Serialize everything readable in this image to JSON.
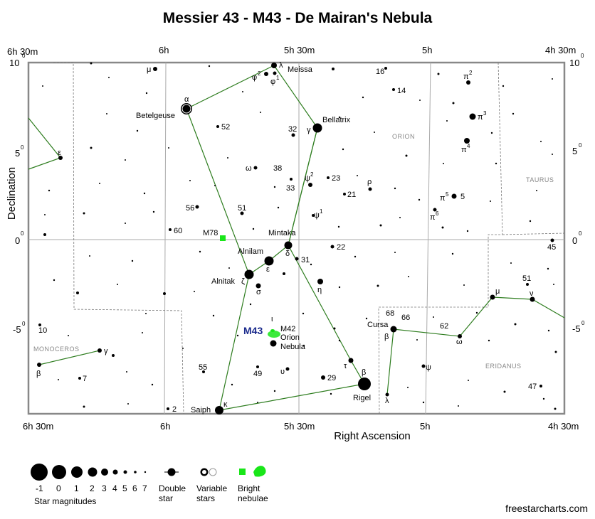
{
  "title": "Messier 43 - M43 - De Mairan's Nebula",
  "chart_data": {
    "type": "star-chart",
    "axes": {
      "xlabel": "Right Ascension",
      "ylabel": "Declination",
      "ra_ticks": [
        "6h 30m",
        "6h",
        "5h 30m",
        "5h",
        "4h 30m"
      ],
      "dec_ticks_left": [
        "10",
        "5",
        "0",
        "-5"
      ],
      "dec_ticks_right": [
        "10",
        "5",
        "0",
        "-5"
      ],
      "dec_minutes": "0",
      "dec_range": [
        -9.7,
        10.0
      ]
    },
    "constellations": [
      "Orion",
      "Taurus",
      "Monoceros",
      "Eridanus"
    ],
    "named_stars": [
      {
        "label": "Betelgeuse",
        "greek": "α"
      },
      {
        "label": "Bellatrix",
        "greek": "γ"
      },
      {
        "label": "Meissa",
        "greek": "λ"
      },
      {
        "label": "Mintaka",
        "greek": "δ"
      },
      {
        "label": "Alnilam",
        "greek": "ε"
      },
      {
        "label": "Alnitak",
        "greek": "ζ"
      },
      {
        "label": "Saiph",
        "greek": "κ"
      },
      {
        "label": "Rigel",
        "greek": "β"
      },
      {
        "label": "Cursa",
        "greek": "β"
      }
    ],
    "star_labels": {
      "mu_ori": "μ",
      "phi2": "φ",
      "phi2_sup": "2",
      "phi1": "φ",
      "phi1_sup": "1",
      "s16": "16",
      "s14": "14",
      "pi2": "π",
      "pi2_sup": "2",
      "pi3": "π",
      "pi3_sup": "3",
      "pi4": "π",
      "pi4_sup": "4",
      "pi5": "π",
      "pi5_sup": "5",
      "s5": "5",
      "pi6": "π",
      "pi6_sup": "6",
      "s52": "52",
      "s32": "32",
      "s38": "38",
      "omega": "ω",
      "s33": "33",
      "psi2": "ψ",
      "psi2_sup": "2",
      "s23": "23",
      "s21": "21",
      "rho": "ρ",
      "psi1": "ψ",
      "psi1_sup": "1",
      "s56": "56",
      "s51": "51",
      "s60": "60",
      "s22": "22",
      "s31": "31",
      "eta": "η",
      "sigma": "σ",
      "s45": "45",
      "s51_eri": "51",
      "mu_eri": "μ",
      "nu_eri": "ν",
      "s68": "68",
      "s66": "66",
      "s62": "62",
      "omega_eri": "ω",
      "psi_eri": "ψ",
      "lambda_eri": "λ",
      "s47": "47",
      "tau": "τ",
      "s29": "29",
      "upsilon": "υ",
      "s49": "49",
      "s55": "55",
      "s2": "2",
      "s10": "10",
      "gamma_mon": "γ",
      "beta_mon": "β",
      "s7": "7",
      "epsilon_mon": "ε",
      "iota": "ι",
      "m42": "M42"
    },
    "objects": {
      "target": "M43",
      "m78": "M78",
      "orion_nebula_1": "Orion",
      "orion_nebula_2": "Nebula"
    },
    "constellation_labels": {
      "orion": "Orion",
      "taurus": "Taurus",
      "monoceros": "Monoceros",
      "eridanus": "Eridanus"
    }
  },
  "legend": {
    "magnitudes_title": "Star magnitudes",
    "magnitudes": [
      "-1",
      "0",
      "1",
      "2",
      "3",
      "4",
      "5",
      "6",
      "7"
    ],
    "double_star": [
      "Double",
      "star"
    ],
    "variable_stars": [
      "Variable",
      "stars"
    ],
    "bright_nebulae": [
      "Bright",
      "nebulae"
    ]
  },
  "credit": "freestarcharts.com",
  "colors": {
    "constellation_line": "#2e7d1f",
    "nebula": "#19e619",
    "m43_label": "#1a2a8c",
    "grid": "#aaaaaa",
    "frame": "#888888"
  }
}
